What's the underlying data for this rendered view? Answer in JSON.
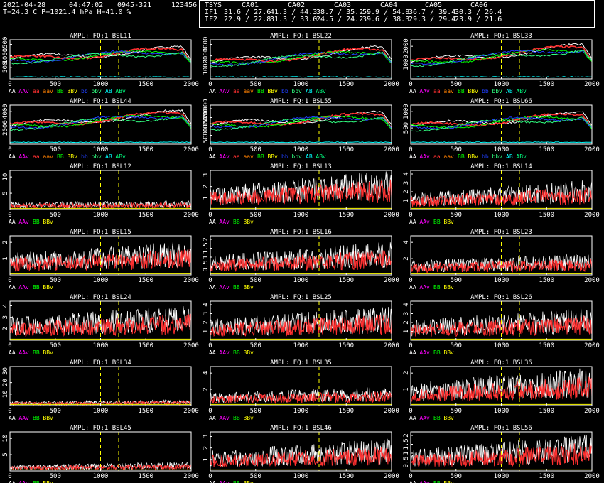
{
  "header": {
    "date": "2021-04-28",
    "time": "04:47:02",
    "source": "0945-321",
    "code": "123456",
    "weather": "T=24.3 C P=1021.4 hPa H=41.0 %",
    "tsys_label": "TSYS",
    "columns": [
      "CA01",
      "CA02",
      "CA03",
      "CA04",
      "CA05",
      "CA06"
    ],
    "rows": [
      {
        "label": "IF1",
        "values": [
          "31.6 / 27.6",
          "41.3 / 44.3",
          "38.7 / 35.2",
          "59.9 / 54.8",
          "36.7 / 39.4",
          "30.3 / 26.4"
        ]
      },
      {
        "label": "IF2",
        "values": [
          "22.9 / 22.8",
          "31.3 / 33.0",
          "24.5 / 24.2",
          "39.6 / 38.3",
          "29.3 / 29.4",
          "23.9 / 21.6"
        ]
      }
    ]
  },
  "chart_data": [
    {
      "type": "line",
      "title": "AMPL: FQ:1 BSL11",
      "kind": "ac",
      "xlim": [
        0,
        2000
      ],
      "xticks": [
        0,
        500,
        1000,
        1500,
        2000
      ],
      "yticks": [
        "500",
        "1000",
        "1500"
      ],
      "ymax": 1800,
      "base": 900,
      "slope": 500,
      "peak": 1400,
      "legend": [
        "AA",
        "AAv",
        "aa",
        "aav",
        "BB",
        "BBv",
        "bb",
        "bbv",
        "AB",
        "ABv"
      ]
    },
    {
      "type": "line",
      "title": "AMPL: FQ:1 BSL22",
      "kind": "ac",
      "xlim": [
        0,
        2000
      ],
      "xticks": [
        0,
        500,
        1000,
        1500,
        2000
      ],
      "yticks": [
        "1000",
        "2000",
        "3000"
      ],
      "ymax": 3200,
      "base": 1300,
      "slope": 1200,
      "peak": 1450,
      "legend": [
        "AA",
        "AAv",
        "aa",
        "aav",
        "BB",
        "BBv",
        "bb",
        "bbv",
        "AB",
        "ABv"
      ]
    },
    {
      "type": "line",
      "title": "AMPL: FQ:1 BSL33",
      "kind": "ac",
      "xlim": [
        0,
        2000
      ],
      "xticks": [
        0,
        500,
        1000,
        1500,
        2000
      ],
      "yticks": [
        "1000",
        "2000"
      ],
      "ymax": 2600,
      "base": 1100,
      "slope": 1100,
      "peak": 1600,
      "legend": [
        "AA",
        "AAv",
        "aa",
        "aav",
        "BB",
        "BBv",
        "bb",
        "bbv",
        "AB",
        "ABv"
      ]
    },
    {
      "type": "line",
      "title": "AMPL: FQ:1 BSL44",
      "kind": "ac",
      "xlim": [
        0,
        2000
      ],
      "xticks": [
        0,
        500,
        1000,
        1500,
        2000
      ],
      "yticks": [
        "2000",
        "4000"
      ],
      "ymax": 6200,
      "base": 2900,
      "slope": 2200,
      "peak": 1400,
      "legend": [
        "AA",
        "AAv",
        "aa",
        "aav",
        "BB",
        "BBv",
        "bb",
        "bbv",
        "AB",
        "ABv"
      ]
    },
    {
      "type": "line",
      "title": "AMPL: FQ:1 BSL55",
      "kind": "ac",
      "xlim": [
        0,
        2000
      ],
      "xticks": [
        0,
        500,
        1000,
        1500,
        2000
      ],
      "yticks": [
        "5000",
        "10000",
        "15000",
        "20000"
      ],
      "ymax": 23000,
      "base": 11000,
      "slope": 7000,
      "peak": 1500,
      "legend": [
        "AA",
        "AAv",
        "aa",
        "aav",
        "BB",
        "BBv",
        "bb",
        "bbv",
        "AB",
        "ABv"
      ]
    },
    {
      "type": "line",
      "title": "AMPL: FQ:1 BSL66",
      "kind": "ac",
      "xlim": [
        0,
        2000
      ],
      "xticks": [
        0,
        500,
        1000,
        1500,
        2000
      ],
      "yticks": [
        "500",
        "1000"
      ],
      "ymax": 1550,
      "base": 700,
      "slope": 500,
      "peak": 1500,
      "legend": [
        "AA",
        "AAv",
        "aa",
        "aav",
        "BB",
        "BBv",
        "bb",
        "bbv",
        "AB",
        "ABv"
      ]
    },
    {
      "type": "line",
      "title": "AMPL: FQ:1 BSL12",
      "kind": "xc",
      "xlim": [
        0,
        2000
      ],
      "xticks": [
        0,
        500,
        1000,
        1500,
        2000
      ],
      "yticks": [
        "5",
        "10"
      ],
      "ymax": 11,
      "base": 1.4,
      "slope": 0.3,
      "legend": [
        "AA",
        "AAv",
        "BB",
        "BBv"
      ]
    },
    {
      "type": "line",
      "title": "AMPL: FQ:1 BSL13",
      "kind": "xc",
      "xlim": [
        0,
        2000
      ],
      "xticks": [
        0,
        500,
        1000,
        1500,
        2000
      ],
      "yticks": [
        "1",
        "2",
        "3"
      ],
      "ymax": 3.1,
      "base": 1.2,
      "slope": 0.9,
      "legend": [
        "AA",
        "AAv",
        "BB",
        "BBv"
      ]
    },
    {
      "type": "line",
      "title": "AMPL: FQ:1 BSL14",
      "kind": "xc",
      "xlim": [
        0,
        2000
      ],
      "xticks": [
        0,
        500,
        1000,
        1500,
        2000
      ],
      "yticks": [
        "1",
        "2",
        "3",
        "4"
      ],
      "ymax": 4.5,
      "base": 1.3,
      "slope": 1.0,
      "legend": [
        "AA",
        "AAv",
        "BB",
        "BBv"
      ]
    },
    {
      "type": "line",
      "title": "AMPL: FQ:1 BSL15",
      "kind": "xc",
      "xlim": [
        0,
        2000
      ],
      "xticks": [
        0,
        500,
        1000,
        1500,
        2000
      ],
      "yticks": [
        "1",
        "2"
      ],
      "ymax": 2.4,
      "base": 0.9,
      "slope": 0.5,
      "legend": [
        "AA",
        "AAv",
        "BB",
        "BBv"
      ]
    },
    {
      "type": "line",
      "title": "AMPL: FQ:1 BSL16",
      "kind": "xc",
      "xlim": [
        0,
        2000
      ],
      "xticks": [
        0,
        500,
        1000,
        1500,
        2000
      ],
      "yticks": [
        "0.5",
        "1",
        "1.5",
        "2"
      ],
      "ymax": 2.1,
      "base": 0.7,
      "slope": 0.5,
      "legend": [
        "AA",
        "AAv",
        "BB",
        "BBv"
      ]
    },
    {
      "type": "line",
      "title": "AMPL: FQ:1 BSL23",
      "kind": "xc",
      "xlim": [
        0,
        2000
      ],
      "xticks": [
        0,
        500,
        1000,
        1500,
        2000
      ],
      "yticks": [
        "2",
        "4"
      ],
      "ymax": 5.2,
      "base": 1.3,
      "slope": 0.6,
      "legend": [
        "AA",
        "AAv",
        "BB",
        "BBv"
      ]
    },
    {
      "type": "line",
      "title": "AMPL: FQ:1 BSL24",
      "kind": "xc",
      "xlim": [
        0,
        2000
      ],
      "xticks": [
        0,
        500,
        1000,
        1500,
        2000
      ],
      "yticks": [
        "2",
        "3",
        "4"
      ],
      "ymax": 4.4,
      "base": 1.8,
      "slope": 0.8,
      "legend": [
        "AA",
        "AAv",
        "BB",
        "BBv"
      ]
    },
    {
      "type": "line",
      "title": "AMPL: FQ:1 BSL25",
      "kind": "xc",
      "xlim": [
        0,
        2000
      ],
      "xticks": [
        0,
        500,
        1000,
        1500,
        2000
      ],
      "yticks": [
        "1",
        "2",
        "3",
        "4"
      ],
      "ymax": 4.2,
      "base": 1.5,
      "slope": 1.0,
      "legend": [
        "AA",
        "AAv",
        "BB",
        "BBv"
      ]
    },
    {
      "type": "line",
      "title": "AMPL: FQ:1 BSL26",
      "kind": "xc",
      "xlim": [
        0,
        2000
      ],
      "xticks": [
        0,
        500,
        1000,
        1500,
        2000
      ],
      "yticks": [
        "1",
        "2",
        "3",
        "4"
      ],
      "ymax": 4.3,
      "base": 1.5,
      "slope": 0.9,
      "legend": [
        "AA",
        "AAv",
        "BB",
        "BBv"
      ]
    },
    {
      "type": "line",
      "title": "AMPL: FQ:1 BSL34",
      "kind": "xc",
      "xlim": [
        0,
        2000
      ],
      "xticks": [
        0,
        500,
        1000,
        1500,
        2000
      ],
      "yticks": [
        "10",
        "20",
        "30"
      ],
      "ymax": 31,
      "base": 2.2,
      "slope": 0.8,
      "legend": [
        "AA",
        "AAv",
        "BB",
        "BBv"
      ]
    },
    {
      "type": "line",
      "title": "AMPL: FQ:1 BSL35",
      "kind": "xc",
      "xlim": [
        0,
        2000
      ],
      "xticks": [
        0,
        500,
        1000,
        1500,
        2000
      ],
      "yticks": [
        "2",
        "4"
      ],
      "ymax": 5.6,
      "base": 1.3,
      "slope": 0.5,
      "legend": [
        "AA",
        "AAv",
        "BB",
        "BBv"
      ]
    },
    {
      "type": "line",
      "title": "AMPL: FQ:1 BSL36",
      "kind": "xc",
      "xlim": [
        0,
        2000
      ],
      "xticks": [
        0,
        500,
        1000,
        1500,
        2000
      ],
      "yticks": [
        "1",
        "2"
      ],
      "ymax": 2.3,
      "base": 0.9,
      "slope": 0.6,
      "legend": [
        "AA",
        "AAv",
        "BB",
        "BBv"
      ]
    },
    {
      "type": "line",
      "title": "AMPL: FQ:1 BSL45",
      "kind": "xc",
      "xlim": [
        0,
        2000
      ],
      "xticks": [
        0,
        500,
        1000,
        1500,
        2000
      ],
      "yticks": [
        "5",
        "10"
      ],
      "ymax": 11,
      "base": 1.1,
      "slope": 0.6,
      "legend": [
        "AA",
        "AAv",
        "BB",
        "BBv"
      ]
    },
    {
      "type": "line",
      "title": "AMPL: FQ:1 BSL46",
      "kind": "xc",
      "xlim": [
        0,
        2000
      ],
      "xticks": [
        0,
        500,
        1000,
        1500,
        2000
      ],
      "yticks": [
        "1",
        "2",
        "3"
      ],
      "ymax": 3.4,
      "base": 1.2,
      "slope": 0.7,
      "legend": [
        "AA",
        "AAv",
        "BB",
        "BBv"
      ]
    },
    {
      "type": "line",
      "title": "AMPL: FQ:1 BSL56",
      "kind": "xc",
      "xlim": [
        0,
        2000
      ],
      "xticks": [
        0,
        500,
        1000,
        1500,
        2000
      ],
      "yticks": [
        "0.5",
        "1",
        "1.5",
        "2"
      ],
      "ymax": 2.2,
      "base": 0.8,
      "slope": 0.6,
      "legend": [
        "AA",
        "AAv",
        "BB",
        "BBv"
      ]
    }
  ],
  "markers": [
    1000,
    1200
  ],
  "colors": {
    "AA": "#ffffff",
    "AAv": "#ff00ff",
    "aa": "#ff3030",
    "aav": "#ff8000",
    "BB": "#00ff00",
    "BBv": "#ffff00",
    "bb": "#2040ff",
    "bbv": "#30ff80",
    "AB": "#00ffff",
    "ABv": "#00ff80",
    "marker": "#ffff00",
    "axis": "#ffffff",
    "fg": "#ffffff"
  }
}
